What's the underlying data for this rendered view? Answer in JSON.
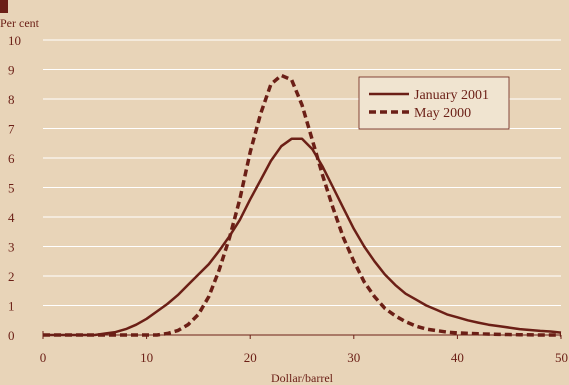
{
  "chart_data": {
    "type": "line",
    "title": "",
    "ylabel": "Per cent",
    "xlabel": "Dollar/barrel",
    "xlim": [
      0,
      50
    ],
    "ylim": [
      0,
      10
    ],
    "x_ticks": [
      0,
      10,
      20,
      30,
      40,
      50
    ],
    "y_ticks": [
      0,
      1,
      2,
      3,
      4,
      5,
      6,
      7,
      8,
      9,
      10
    ],
    "grid": "horizontal",
    "legend_position": "top-right",
    "colors": {
      "background": "#e8d4b8",
      "line": "#6b1f16",
      "grid": "#ffffff"
    },
    "series": [
      {
        "name": "January 2001",
        "style": "solid",
        "x": [
          0,
          5,
          6,
          7,
          8,
          9,
          10,
          11,
          12,
          13,
          14,
          15,
          16,
          17,
          18,
          19,
          20,
          21,
          22,
          23,
          24,
          25,
          26,
          27,
          28,
          29,
          30,
          31,
          32,
          33,
          34,
          35,
          36,
          37,
          38,
          39,
          40,
          41,
          42,
          43,
          44,
          45,
          46,
          47,
          48,
          49,
          50
        ],
        "values": [
          0,
          0,
          0.05,
          0.1,
          0.2,
          0.35,
          0.55,
          0.8,
          1.05,
          1.35,
          1.7,
          2.05,
          2.4,
          2.85,
          3.35,
          3.9,
          4.6,
          5.25,
          5.9,
          6.4,
          6.65,
          6.65,
          6.3,
          5.7,
          5.0,
          4.3,
          3.6,
          3.0,
          2.5,
          2.05,
          1.7,
          1.4,
          1.2,
          1.0,
          0.85,
          0.7,
          0.6,
          0.5,
          0.42,
          0.35,
          0.3,
          0.25,
          0.2,
          0.17,
          0.14,
          0.12,
          0.08
        ]
      },
      {
        "name": "May 2000",
        "style": "dashed",
        "x": [
          0,
          8,
          9,
          10,
          11,
          12,
          13,
          14,
          15,
          16,
          17,
          18,
          19,
          20,
          21,
          22,
          23,
          24,
          25,
          26,
          27,
          28,
          29,
          30,
          31,
          32,
          33,
          34,
          35,
          36,
          37,
          38,
          39,
          40,
          42,
          44,
          46,
          48,
          50
        ],
        "values": [
          0,
          0,
          0,
          0,
          0,
          0.05,
          0.15,
          0.35,
          0.7,
          1.3,
          2.2,
          3.3,
          4.6,
          6.2,
          7.5,
          8.5,
          8.8,
          8.65,
          7.8,
          6.6,
          5.4,
          4.3,
          3.3,
          2.5,
          1.8,
          1.3,
          0.9,
          0.65,
          0.45,
          0.3,
          0.2,
          0.15,
          0.1,
          0.07,
          0.04,
          0.02,
          0.01,
          0,
          0
        ]
      }
    ]
  }
}
